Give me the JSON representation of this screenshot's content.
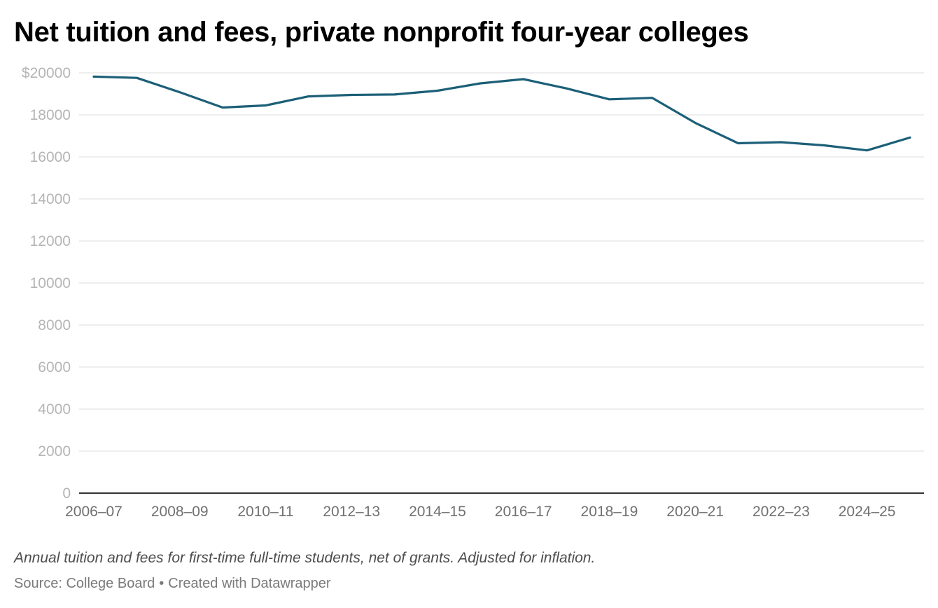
{
  "chart_data": {
    "type": "line",
    "title": "Net tuition and fees, private nonprofit four-year colleges",
    "xlabel": "",
    "ylabel": "",
    "x": [
      "2006–07",
      "2007–08",
      "2008–09",
      "2009–10",
      "2010–11",
      "2011–12",
      "2012–13",
      "2013–14",
      "2014–15",
      "2015–16",
      "2016–17",
      "2017–18",
      "2018–19",
      "2019–20",
      "2020–21",
      "2021–22",
      "2022–23",
      "2023–24",
      "2024–25",
      "2025–26"
    ],
    "x_tick_labels": [
      "2006–07",
      "2008–09",
      "2010–11",
      "2012–13",
      "2014–15",
      "2016–17",
      "2018–19",
      "2020–21",
      "2022–23",
      "2024–25"
    ],
    "series": [
      {
        "name": "Net tuition and fees",
        "color": "#1c5f78",
        "values": [
          19820,
          19760,
          19080,
          18350,
          18450,
          18880,
          18950,
          18970,
          19150,
          19500,
          19700,
          19260,
          18740,
          18810,
          17620,
          16650,
          16700,
          16550,
          16310,
          16920
        ]
      }
    ],
    "ylim": [
      0,
      20000
    ],
    "y_ticks": [
      0,
      2000,
      4000,
      6000,
      8000,
      10000,
      12000,
      14000,
      16000,
      18000,
      20000
    ],
    "y_tick_labels": [
      "0",
      "2000",
      "4000",
      "6000",
      "8000",
      "10000",
      "12000",
      "14000",
      "16000",
      "18000",
      "$20000"
    ],
    "grid": true,
    "notes": "Annual tuition and fees for first-time full-time students, net of grants. Adjusted for inflation.",
    "source": "Source: College Board",
    "credit": "Created with Datawrapper"
  },
  "colors": {
    "line": "#1c5f78",
    "grid": "#e3e3e3",
    "baseline": "#333333",
    "y_tick_text": "#b5b5b5",
    "x_tick_text": "#707070"
  }
}
